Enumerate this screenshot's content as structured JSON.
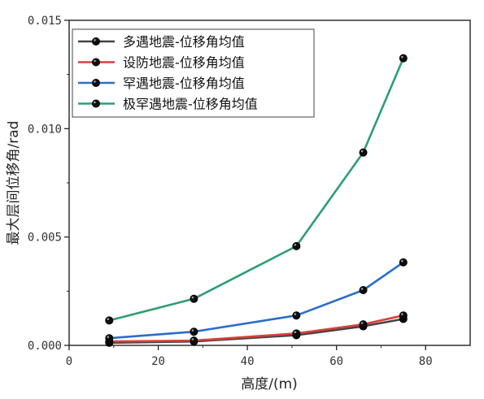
{
  "chart_data": {
    "type": "line",
    "title": "",
    "xlabel": "高度/(m)",
    "ylabel": "最大层间位移角/rad",
    "xlim": [
      0,
      90
    ],
    "ylim": [
      0,
      0.015
    ],
    "x_ticks": [
      "0",
      "20",
      "40",
      "60",
      "80"
    ],
    "y_ticks": [
      "0.000",
      "0.005",
      "0.010",
      "0.015"
    ],
    "grid": false,
    "legend_position": "top-left",
    "x": [
      9,
      28,
      51,
      66,
      75
    ],
    "series": [
      {
        "name": "多遇地震-位移角均值",
        "color": "#444444",
        "values": [
          0.00012,
          0.00018,
          0.00047,
          0.00088,
          0.00122
        ]
      },
      {
        "name": "设防地震-位移角均值",
        "color": "#d9403a",
        "values": [
          0.00018,
          0.00022,
          0.00055,
          0.00097,
          0.00138
        ]
      },
      {
        "name": "罕遇地震-位移角均值",
        "color": "#2a6fc9",
        "values": [
          0.00033,
          0.00063,
          0.00138,
          0.00255,
          0.00383
        ]
      },
      {
        "name": "极罕遇地震-位移角均值",
        "color": "#2e9e72",
        "values": [
          0.00115,
          0.00215,
          0.00458,
          0.0089,
          0.01325
        ]
      }
    ]
  }
}
